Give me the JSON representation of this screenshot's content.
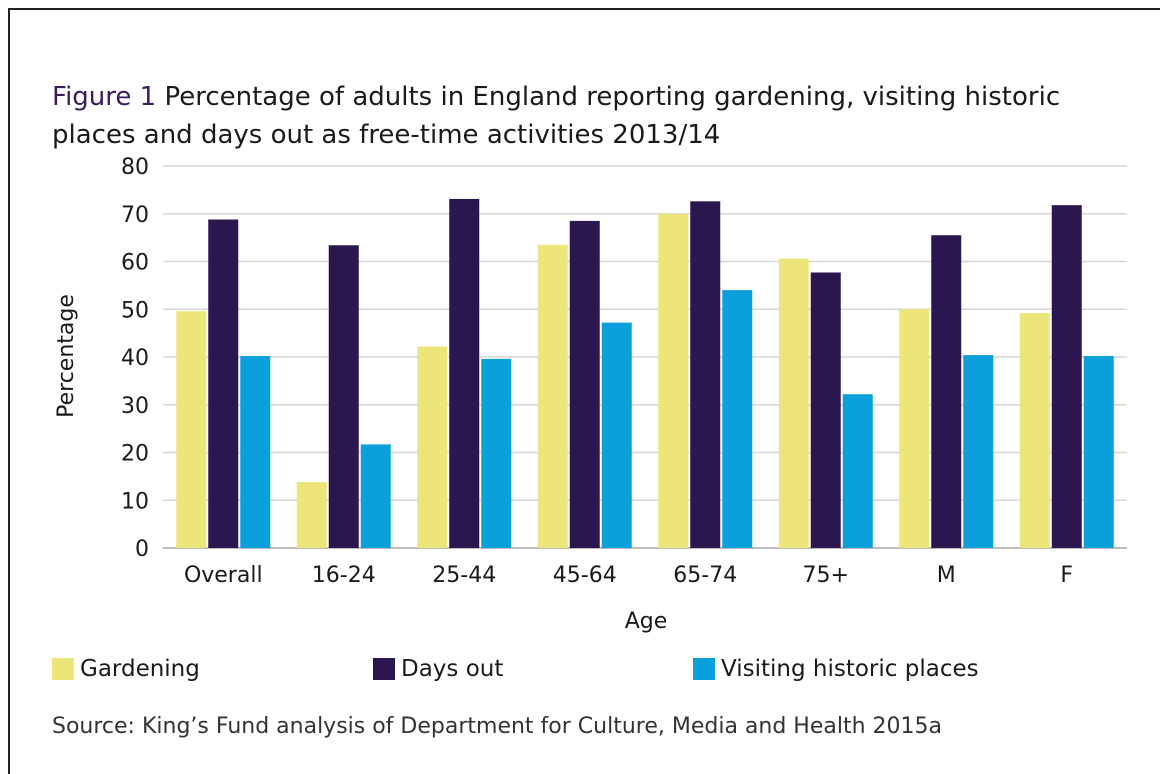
{
  "header": {
    "figure_label": "Figure 1",
    "title_text": " Percentage of adults in England reporting gardening, visiting historic places and days out as free-time activities 2013/14"
  },
  "chart_data": {
    "type": "bar",
    "categories": [
      "Overall",
      "16-24",
      "25-44",
      "45-64",
      "65-74",
      "75+",
      "M",
      "F"
    ],
    "series": [
      {
        "name": "Gardening",
        "color": "#ece67a",
        "values": [
          49.6,
          13.8,
          42.2,
          63.5,
          70.0,
          60.6,
          50.0,
          49.2
        ]
      },
      {
        "name": "Days out",
        "color": "#2b1650",
        "values": [
          68.8,
          63.4,
          73.1,
          68.5,
          72.6,
          57.7,
          65.5,
          71.8
        ]
      },
      {
        "name": "Visiting historic places",
        "color": "#0b9fdb",
        "values": [
          40.2,
          21.7,
          39.6,
          47.2,
          54.0,
          32.2,
          40.4,
          40.2
        ]
      }
    ],
    "xlabel": "Age",
    "ylabel": "Percentage",
    "ylim": [
      0,
      80
    ],
    "yticks": [
      "0",
      "10",
      "20",
      "30",
      "40",
      "50",
      "60",
      "70",
      "80"
    ],
    "grid": true,
    "legend_position": "bottom"
  },
  "footer": {
    "source": "Source: King’s Fund analysis of Department for Culture, Media and Health 2015a"
  }
}
